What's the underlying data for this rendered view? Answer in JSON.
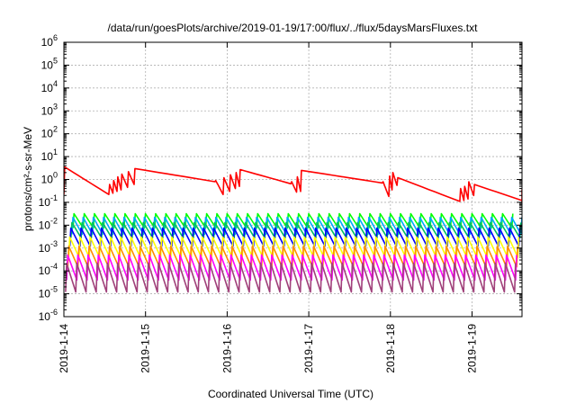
{
  "chart_data": {
    "type": "line",
    "title": "/data/run/goesPlots/archive/2019-01-19/17:00/flux/../flux/5daysMarsFluxes.txt",
    "xlabel": "Coordinated Universal Time (UTC)",
    "ylabel": "protons/cm²-s-sr-MeV",
    "yscale": "log",
    "ylim": [
      1e-06,
      1000000.0
    ],
    "xlim": [
      "2019-01-14 00:00",
      "2019-01-19 19:30"
    ],
    "grid": true,
    "xticks": [
      "2019-1-14",
      "2019-1-15",
      "2019-1-16",
      "2019-1-17",
      "2019-1-18",
      "2019-1-19"
    ],
    "yticks": [
      -6,
      -5,
      -4,
      -3,
      -2,
      -1,
      0,
      1,
      2,
      3,
      4,
      5,
      6
    ],
    "series": [
      {
        "color": "#ff0000",
        "style": "decay",
        "peaks_day": [
          0.0,
          0.55,
          0.6,
          0.65,
          0.7,
          0.78,
          0.86,
          1.85,
          1.95,
          2.03,
          2.1,
          2.15,
          2.78,
          2.85,
          2.9,
          3.9,
          3.98,
          4.02,
          4.08,
          4.85,
          4.9,
          4.95,
          5.02,
          5.68
        ],
        "peak_values": [
          3.5,
          0.6,
          0.9,
          1.3,
          1.7,
          2.2,
          3.0,
          0.9,
          1.2,
          1.6,
          2.0,
          2.7,
          0.8,
          1.3,
          2.5,
          0.8,
          1.4,
          2.0,
          1.2,
          0.4,
          0.5,
          0.8,
          0.6,
          0.4
        ],
        "min_values": [
          0.22,
          0.25,
          0.3,
          0.35,
          0.45,
          0.6,
          0.8,
          0.22,
          0.3,
          0.4,
          0.5,
          0.65,
          0.28,
          0.3,
          0.7,
          0.18,
          0.35,
          0.55,
          0.11,
          0.12,
          0.14,
          0.2,
          0.1,
          0.1
        ]
      },
      {
        "color": "#00ff00",
        "style": "sawtooth",
        "max": 0.032,
        "min": 0.0075
      },
      {
        "color": "#00a8ff",
        "style": "sawtooth",
        "max": 0.022,
        "min": 0.004
      },
      {
        "color": "#00c060",
        "style": "sawtooth",
        "max": 0.013,
        "min": 0.0028
      },
      {
        "color": "#0000ff",
        "style": "sawtooth",
        "max": 0.0075,
        "min": 0.0012
      },
      {
        "color": "#ffff00",
        "style": "sawtooth",
        "max": 0.003,
        "min": 0.0004
      },
      {
        "color": "#ff8c00",
        "style": "sawtooth",
        "max": 0.0012,
        "min": 0.00015
      },
      {
        "color": "#ff00ff",
        "style": "sawtooth",
        "max": 0.0005,
        "min": 4e-05
      },
      {
        "color": "#a0407a",
        "style": "sawtooth",
        "max": 0.00022,
        "min": 1.2e-05
      }
    ],
    "sawtooth_period_days": 0.125
  }
}
